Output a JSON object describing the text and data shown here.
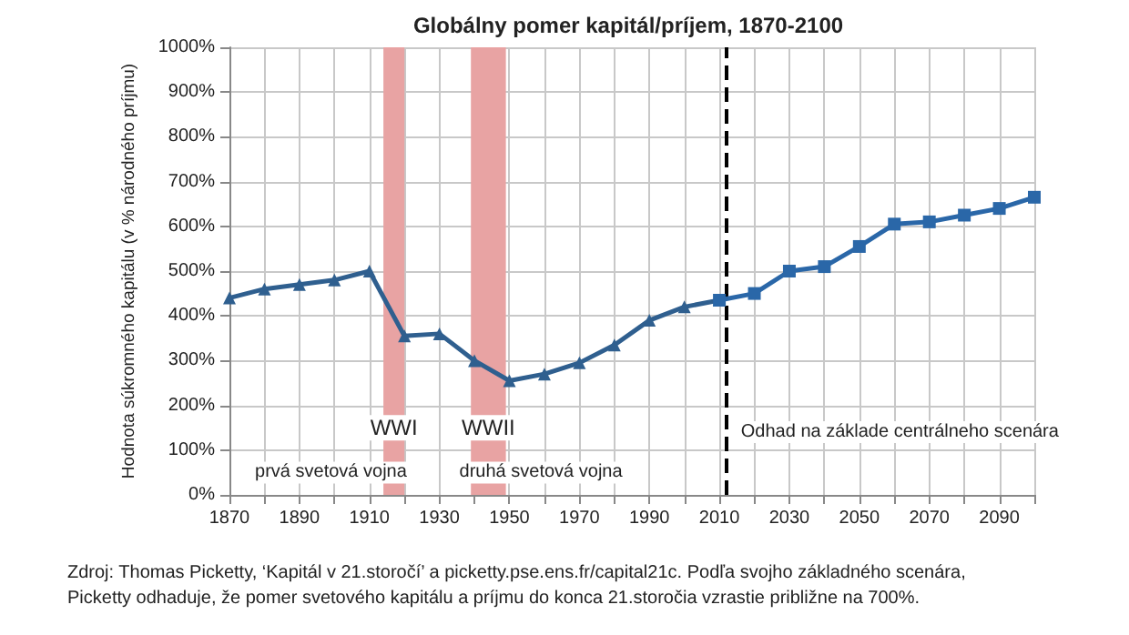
{
  "chart_data": {
    "type": "line",
    "title": "Globálny pomer kapitál/príjem, 1870-2100",
    "ylabel": "Hodnota súkromného kapitálu (v % národného príjmu)",
    "series": [
      {
        "color": "#2f5f8f",
        "marker": "triangle",
        "x": [
          1870,
          1880,
          1890,
          1900,
          1910,
          1920,
          1930,
          1940,
          1950,
          1960,
          1970,
          1980,
          1990,
          2000,
          2010
        ],
        "values": [
          440,
          460,
          470,
          480,
          500,
          355,
          360,
          300,
          255,
          270,
          295,
          335,
          390,
          420,
          435
        ]
      },
      {
        "color": "#2a67a8",
        "marker": "square",
        "x": [
          2010,
          2020,
          2030,
          2040,
          2050,
          2060,
          2070,
          2080,
          2090,
          2100
        ],
        "values": [
          435,
          450,
          500,
          510,
          555,
          605,
          610,
          625,
          640,
          665
        ]
      }
    ],
    "xlim": [
      1870,
      2100
    ],
    "xticks": [
      1870,
      {
        "value": 1880,
        "label": null
      },
      1890,
      {
        "value": 1900,
        "label": null
      },
      1910,
      {
        "value": 1920,
        "label": null
      },
      1930,
      {
        "value": 1940,
        "label": null
      },
      1950,
      {
        "value": 1960,
        "label": null
      },
      1970,
      {
        "value": 1980,
        "label": null
      },
      1990,
      {
        "value": 2000,
        "label": null
      },
      2010,
      {
        "value": 2020,
        "label": null
      },
      2030,
      {
        "value": 2040,
        "label": null
      },
      2050,
      {
        "value": 2060,
        "label": null
      },
      2070,
      {
        "value": 2080,
        "label": null
      },
      2090,
      {
        "value": 2100,
        "label": null
      }
    ],
    "ylim": [
      0,
      1000
    ],
    "yticks": [
      {
        "value": 0,
        "label": "0%"
      },
      {
        "value": 100,
        "label": "100%"
      },
      {
        "value": 200,
        "label": "200%"
      },
      {
        "value": 300,
        "label": "300%"
      },
      {
        "value": 400,
        "label": "400%"
      },
      {
        "value": 500,
        "label": "500%"
      },
      {
        "value": 600,
        "label": "600%"
      },
      {
        "value": 700,
        "label": "700%"
      },
      {
        "value": 800,
        "label": "800%"
      },
      {
        "value": 900,
        "label": "900%"
      },
      {
        "value": 1000,
        "label": "1000%"
      }
    ],
    "grid": true,
    "line_style": "solid",
    "bands": [
      {
        "axis": "x",
        "from": 1914,
        "to": 1920,
        "label": "WWI",
        "color": "#e8a3a3"
      },
      {
        "axis": "x",
        "from": 1939,
        "to": 1949,
        "label": "WWII",
        "color": "#e8a3a3"
      }
    ],
    "ref_lines": [
      {
        "axis": "x",
        "value": 2012,
        "label": "Odhad na základe centrálneho scenára",
        "color": "#000000",
        "line_style": "dashed"
      }
    ],
    "annotations": [
      "prvá svetová vojna",
      "druhá svetová vojna",
      "Zdroj: Thomas Picketty, ‘Kapitál v 21.storočí’ a picketty.pse.ens.fr/capital21c. Podľa svojho základného scenára, Picketty odhaduje, že pomer svetového kapitálu a príjmu do konca 21.storočia vzrastie približne na 700%."
    ]
  }
}
